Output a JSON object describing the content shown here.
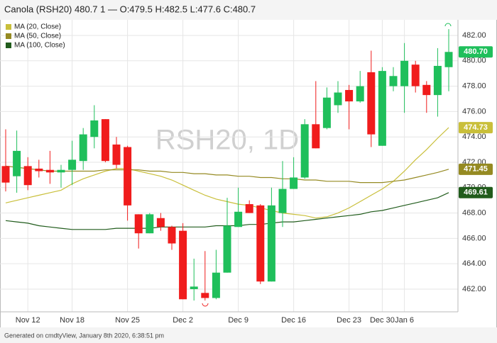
{
  "header": "Canola (RSH20) 480.7 1 — O:479.5 H:482.5 L:477.6 C:480.7",
  "watermark": "RSH20, 1D",
  "footer": "Generated on cmdtyView, January 8th 2020, 6:38:51 pm",
  "chart_data": {
    "type": "candlestick",
    "categories": [
      null,
      null,
      "Nov 12",
      null,
      null,
      null,
      "Nov 18",
      null,
      null,
      null,
      null,
      "Nov 25",
      null,
      null,
      null,
      null,
      "Dec 2",
      null,
      null,
      null,
      null,
      "Dec 9",
      null,
      null,
      null,
      null,
      "Dec 16",
      null,
      null,
      null,
      null,
      "Dec 23",
      null,
      null,
      "Dec 30",
      null,
      "Jan 6",
      null,
      null,
      null,
      null
    ],
    "open": [
      471.7,
      470.9,
      471.7,
      471.5,
      471.4,
      471.2,
      471.4,
      472.1,
      474.0,
      475.4,
      473.4,
      473.2,
      467.9,
      466.4,
      467.6,
      466.9,
      466.6,
      462.0,
      461.7,
      461.3,
      463.3,
      466.9,
      468.7,
      468.6,
      462.6,
      468.0,
      469.9,
      470.8,
      475.0,
      474.7,
      476.5,
      477.7,
      476.8,
      479.1,
      473.3,
      478.0,
      478.0,
      479.7,
      478.1,
      477.3,
      479.5
    ],
    "high": [
      474.6,
      474.5,
      472.4,
      472.2,
      472.9,
      471.8,
      473.7,
      474.7,
      476.5,
      475.4,
      474.0,
      473.3,
      467.9,
      468.0,
      468.0,
      467.0,
      467.2,
      464.4,
      465.0,
      465.1,
      469.2,
      470.0,
      469.0,
      468.7,
      470.0,
      472.1,
      472.4,
      475.4,
      478.4,
      477.9,
      478.4,
      478.1,
      479.2,
      480.8,
      479.5,
      479.5,
      481.4,
      480.0,
      478.4,
      481.0,
      482.5
    ],
    "low": [
      469.7,
      469.6,
      469.8,
      470.8,
      470.3,
      470.0,
      470.2,
      471.4,
      473.1,
      472.0,
      471.5,
      467.4,
      465.2,
      466.4,
      466.6,
      465.1,
      461.2,
      461.1,
      461.1,
      461.2,
      463.3,
      466.9,
      468.0,
      462.4,
      462.6,
      466.9,
      469.9,
      470.7,
      473.1,
      474.6,
      475.9,
      474.6,
      476.7,
      473.2,
      473.3,
      477.6,
      475.9,
      477.5,
      475.9,
      475.6,
      477.6
    ],
    "close": [
      470.4,
      472.9,
      470.2,
      471.3,
      471.2,
      471.4,
      472.2,
      474.2,
      475.3,
      472.1,
      471.8,
      468.6,
      466.4,
      467.9,
      466.9,
      465.6,
      461.2,
      462.2,
      461.3,
      463.3,
      467.0,
      468.1,
      468.0,
      462.6,
      468.6,
      469.9,
      470.8,
      475.0,
      473.1,
      477.1,
      477.5,
      476.8,
      478.0,
      474.2,
      479.2,
      478.8,
      480.0,
      478.0,
      477.3,
      479.6,
      480.7
    ],
    "up_color": "#1fbf5b",
    "down_color": "#f01c1c",
    "last_label": {
      "value": 480.7,
      "label": "480.70"
    },
    "series": [
      {
        "name": "MA (20, Close)",
        "color": "#c9bf3a",
        "last_label": {
          "value": 474.73,
          "label": "474.73"
        },
        "values": [
          468.8,
          469.0,
          469.2,
          469.4,
          469.6,
          469.8,
          470.3,
          470.7,
          471.0,
          471.3,
          471.5,
          471.5,
          471.3,
          471.1,
          470.9,
          470.6,
          470.2,
          469.8,
          469.4,
          469.1,
          468.9,
          468.7,
          468.6,
          468.4,
          468.2,
          468.0,
          467.9,
          467.8,
          467.6,
          467.7,
          468.0,
          468.4,
          468.9,
          469.4,
          469.9,
          470.5,
          471.3,
          472.2,
          473.0,
          473.9,
          474.73
        ]
      },
      {
        "name": "MA (50, Close)",
        "color": "#958a22",
        "last_label": {
          "value": 471.45,
          "label": "471.45"
        },
        "values": [
          471.7,
          471.6,
          471.5,
          471.4,
          471.3,
          471.3,
          471.3,
          471.3,
          471.3,
          471.4,
          471.4,
          471.4,
          471.4,
          471.3,
          471.3,
          471.2,
          471.2,
          471.1,
          471.1,
          471.0,
          471.0,
          470.9,
          470.9,
          470.8,
          470.8,
          470.7,
          470.7,
          470.6,
          470.6,
          470.5,
          470.5,
          470.5,
          470.4,
          470.4,
          470.4,
          470.5,
          470.6,
          470.8,
          471.0,
          471.2,
          471.45
        ]
      },
      {
        "name": "MA (100, Close)",
        "color": "#215c1c",
        "last_label": {
          "value": 469.61,
          "label": "469.61"
        },
        "values": [
          467.4,
          467.3,
          467.2,
          467.0,
          466.9,
          466.8,
          466.7,
          466.7,
          466.7,
          466.7,
          466.8,
          466.8,
          466.8,
          466.8,
          466.9,
          466.9,
          466.9,
          466.9,
          466.9,
          467.0,
          467.0,
          467.0,
          467.1,
          467.1,
          467.2,
          467.3,
          467.3,
          467.4,
          467.5,
          467.6,
          467.7,
          467.8,
          467.9,
          468.1,
          468.2,
          468.4,
          468.6,
          468.8,
          469.0,
          469.2,
          469.61
        ]
      }
    ],
    "ylim": [
      460.21,
      483.23
    ],
    "yticks": [
      {
        "value": 462,
        "label": "462.00"
      },
      {
        "value": 464,
        "label": "464.00"
      },
      {
        "value": 466,
        "label": "466.00"
      },
      {
        "value": 468,
        "label": "468.00"
      },
      {
        "value": 470,
        "label": "470.00"
      },
      {
        "value": 472,
        "label": "472.00"
      },
      {
        "value": 474,
        "label": "474.00"
      },
      {
        "value": 476,
        "label": "476.00"
      },
      {
        "value": 478,
        "label": "478.00"
      },
      {
        "value": 480,
        "label": "480.00"
      },
      {
        "value": 482,
        "label": "482.00"
      }
    ],
    "grid": true
  }
}
